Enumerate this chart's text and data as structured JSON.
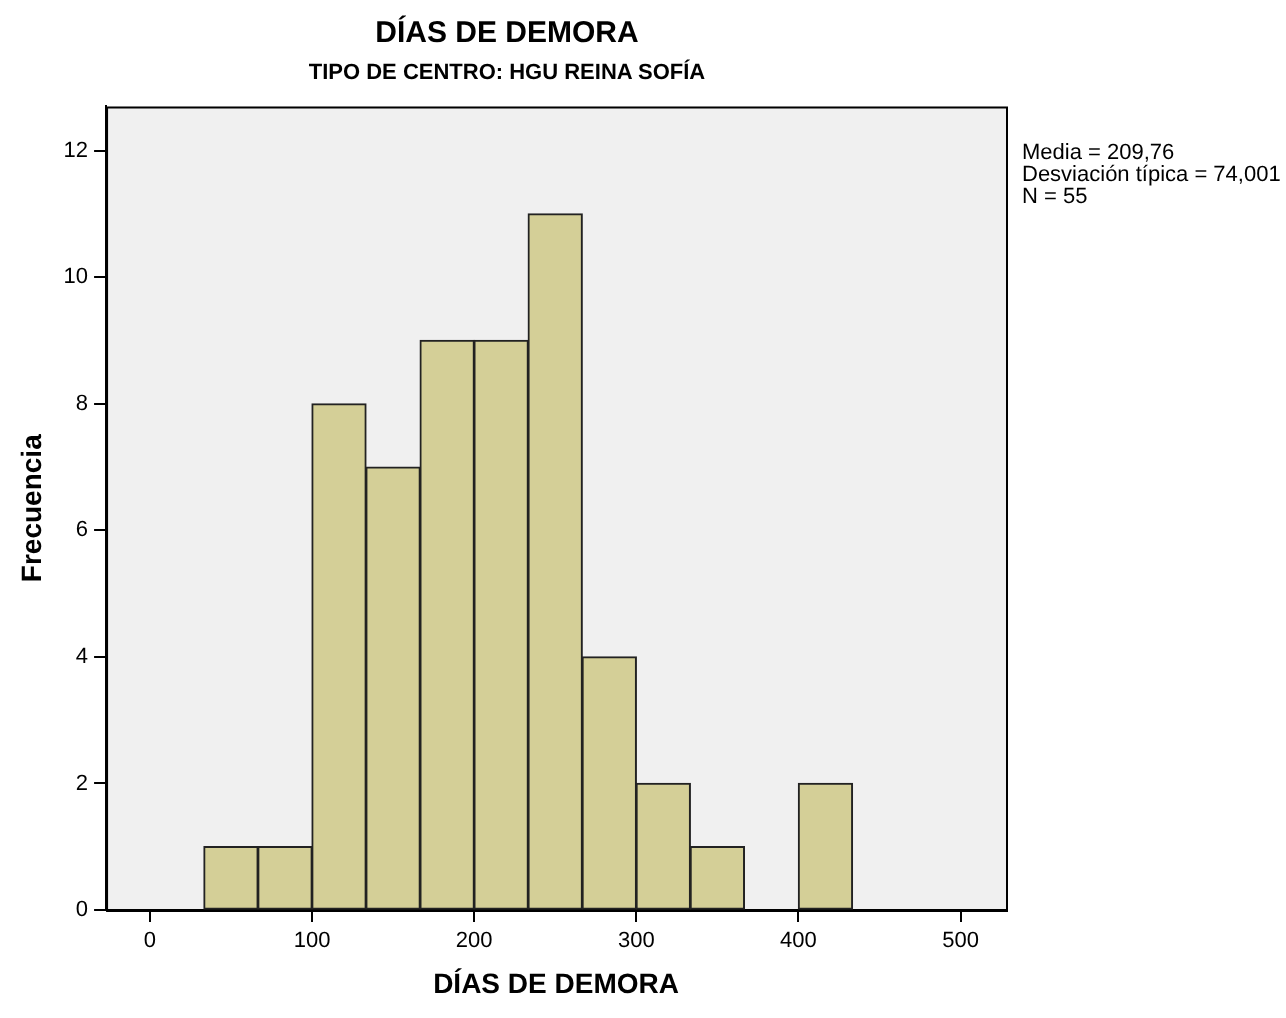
{
  "chart_data": {
    "type": "histogram",
    "title": "DÍAS DE DEMORA",
    "subtitle": "TIPO DE CENTRO: HGU REINA SOFÍA",
    "xlabel": "DÍAS DE DEMORA",
    "ylabel": "Frecuencia",
    "bins": [
      33.3,
      66.7,
      100,
      133.3,
      166.7,
      200,
      233.3,
      266.7,
      300,
      333.3,
      366.7,
      400,
      433.3
    ],
    "values": [
      1,
      1,
      8,
      7,
      9,
      9,
      11,
      4,
      2,
      1,
      0,
      2
    ],
    "color": "#d4cf97",
    "xlim": [
      -27,
      528
    ],
    "xticks": [
      0,
      100,
      200,
      300,
      400,
      500
    ],
    "ylim": [
      0,
      12.7
    ],
    "yticks": [
      0,
      2,
      4,
      6,
      8,
      10,
      12
    ],
    "grid": false,
    "legend": false,
    "annotations": [
      "Media = 209,76",
      "Desviación típica = 74,001",
      "N = 55"
    ]
  }
}
